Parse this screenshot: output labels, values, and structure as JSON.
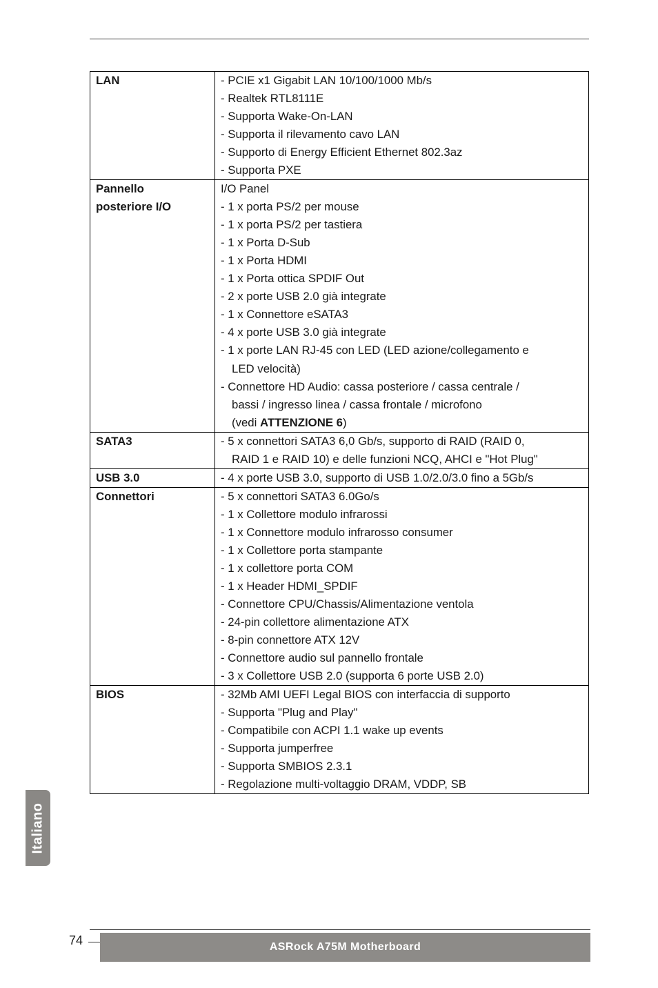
{
  "side_tab": "Italiano",
  "page_number": "74",
  "footer_text": "ASRock  A75M  Motherboard",
  "spec": {
    "lan": {
      "label": "LAN",
      "lines": [
        "- PCIE x1 Gigabit LAN 10/100/1000 Mb/s",
        "- Realtek RTL8111E",
        "- Supporta Wake-On-LAN",
        "- Supporta il rilevamento cavo LAN",
        "- Supporto di Energy Efficient Ethernet 802.3az",
        "- Supporta PXE"
      ]
    },
    "pannello": {
      "label1": "Pannello",
      "label2": "posteriore I/O",
      "io_panel": "I/O Panel",
      "lines": [
        "- 1 x porta PS/2 per mouse",
        "- 1 x porta PS/2 per tastiera",
        "- 1 x Porta D-Sub",
        "- 1 x Porta HDMI",
        "- 1 x Porta ottica SPDIF Out",
        "- 2 x porte USB 2.0 già integrate",
        "- 1 x Connettore eSATA3",
        "- 4 x porte USB 3.0 già integrate",
        "- 1 x porte LAN RJ-45 con LED (LED azione/collegamento e"
      ],
      "led_line": "LED velocità)",
      "lines2": [
        "- Connettore HD Audio: cassa posteriore / cassa centrale /"
      ],
      "bassi_line": "bassi / ingresso linea / cassa frontale / microfono",
      "vedi_prefix": "(vedi ",
      "vedi_bold": "ATTENZIONE 6",
      "vedi_suffix": ")"
    },
    "sata3": {
      "label": "SATA3",
      "line1": "- 5 x connettori SATA3 6,0 Gb/s, supporto di RAID (RAID 0,",
      "line2": "RAID 1 e RAID 10) e delle funzioni NCQ, AHCI e \"Hot Plug\""
    },
    "usb3": {
      "label": "USB 3.0",
      "line": "- 4 x porte USB 3.0, supporto di USB 1.0/2.0/3.0 fino a 5Gb/s"
    },
    "connettori": {
      "label": "Connettori",
      "lines": [
        "- 5 x connettori SATA3 6.0Go/s",
        "- 1 x Collettore modulo infrarossi",
        "- 1 x Connettore modulo infrarosso consumer",
        "- 1 x Collettore porta stampante",
        "- 1 x collettore porta COM",
        "- 1 x Header HDMI_SPDIF",
        "- Connettore CPU/Chassis/Alimentazione ventola",
        "- 24-pin collettore alimentazione ATX",
        "- 8-pin connettore ATX 12V",
        "- Connettore audio sul pannello frontale",
        "- 3 x Collettore USB 2.0 (supporta 6 porte USB 2.0)"
      ]
    },
    "bios": {
      "label": "BIOS",
      "lines": [
        "- 32Mb AMI UEFI Legal BIOS con interfaccia di supporto",
        "- Supporta \"Plug and Play\"",
        "- Compatibile con ACPI 1.1 wake up events",
        "- Supporta jumperfree",
        "- Supporta SMBIOS 2.3.1",
        "- Regolazione multi-voltaggio DRAM, VDDP, SB"
      ]
    }
  }
}
